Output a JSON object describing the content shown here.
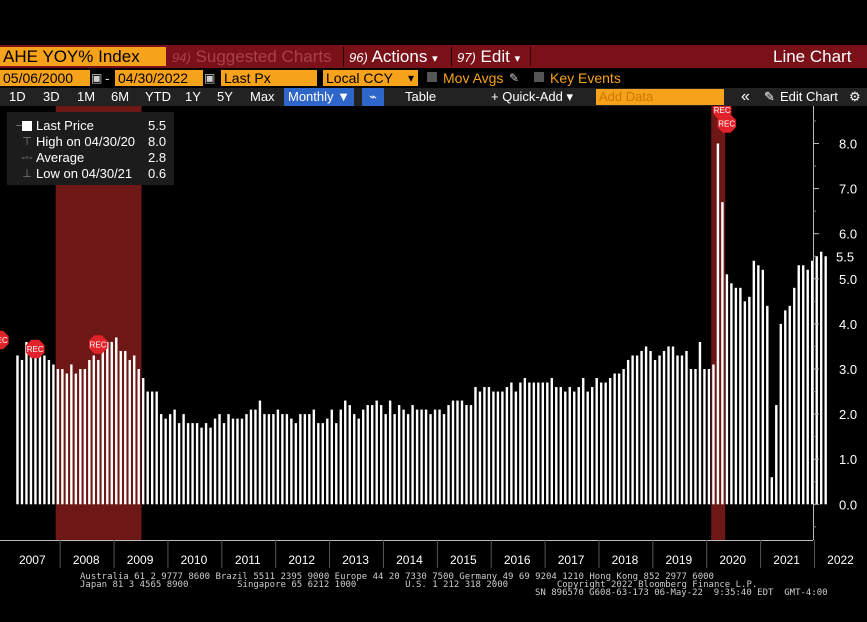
{
  "toolbar": {
    "ticker": "AHE YOY% Index",
    "suggested_num": "94)",
    "suggested": "Suggested Charts",
    "actions_num": "96)",
    "actions": "Actions",
    "edit_num": "97)",
    "edit": "Edit",
    "chart_type": "Line Chart",
    "arrow": "▾"
  },
  "settings": {
    "start_date": "05/06/2000",
    "dash": "-",
    "end_date": "04/30/2022",
    "field": "Last Px",
    "currency": "Local CCY",
    "mov_avgs": "Mov Avgs",
    "key_events": "Key Events"
  },
  "periods": {
    "items": [
      "1D",
      "3D",
      "1M",
      "6M",
      "YTD",
      "1Y",
      "5Y",
      "Max"
    ],
    "frequency": "Monthly ▼",
    "table": "Table",
    "quick_add": "+ Quick-Add ▾",
    "add_data_placeholder": "Add Data",
    "collapse": "«",
    "edit_chart": "Edit Chart",
    "gear": "⚙"
  },
  "legend": {
    "last_label": "Last Price",
    "last_value": "5.5",
    "high_label": "High on 04/30/20",
    "high_value": "8.0",
    "avg_label": "Average",
    "avg_value": "2.8",
    "low_label": "Low on 04/30/21",
    "low_value": "0.6"
  },
  "footer": {
    "line1": "Australia 61 2 9777 8600 Brazil 5511 2395 9000 Europe 44 20 7330 7500 Germany 49 69 9204 1210 Hong Kong 852 2977 6000",
    "line2": "Japan 81 3 4565 8900         Singapore 65 6212 1000         U.S. 1 212 318 2000         Copyright 2022 Bloomberg Finance L.P.",
    "line3": "SN 896570 G608-63-173 06-May-22  9:35:40 EDT  GMT-4:00"
  },
  "colors": {
    "accent": "#f7a21b",
    "header_bar": "#7a1018",
    "recession": "#7a1a1a",
    "event_marker": "#e0222a",
    "bars": "#ffffff"
  },
  "chart_data": {
    "type": "bar",
    "title": "AHE YOY% Index",
    "ylim": [
      -0.8,
      8.6
    ],
    "yticks": [
      "0.0",
      "1.0",
      "2.0",
      "3.0",
      "4.0",
      "5.0",
      "6.0",
      "7.0",
      "8.0"
    ],
    "x_labels": [
      "2007",
      "2008",
      "2009",
      "2010",
      "2011",
      "2012",
      "2013",
      "2014",
      "2015",
      "2016",
      "2017",
      "2018",
      "2019",
      "2020",
      "2021",
      "2022"
    ],
    "last_value_label": "5.5",
    "grid": false,
    "recession_periods": [
      {
        "start": "2007-12",
        "end": "2009-06"
      },
      {
        "start": "2020-02",
        "end": "2020-04"
      }
    ],
    "event_marker_text": "REC",
    "series": [
      {
        "name": "Last Price",
        "start": "2007-03",
        "frequency": "monthly",
        "values": [
          3.3,
          3.2,
          3.6,
          3.4,
          3.5,
          3.6,
          3.3,
          3.2,
          3.1,
          3.0,
          3.0,
          2.9,
          3.1,
          2.9,
          3.0,
          3.0,
          3.2,
          3.3,
          3.2,
          3.4,
          3.6,
          3.6,
          3.7,
          3.4,
          3.4,
          3.2,
          3.3,
          3.0,
          2.8,
          2.5,
          2.5,
          2.5,
          2.0,
          1.9,
          2.0,
          2.1,
          1.8,
          2.0,
          1.8,
          1.8,
          1.8,
          1.7,
          1.8,
          1.7,
          1.9,
          2.0,
          1.8,
          2.0,
          1.9,
          1.9,
          1.9,
          2.0,
          2.1,
          2.1,
          2.3,
          2.0,
          2.0,
          2.0,
          2.1,
          2.0,
          2.0,
          1.9,
          1.8,
          2.0,
          2.0,
          2.0,
          2.1,
          1.8,
          1.8,
          1.9,
          2.1,
          1.8,
          2.1,
          2.3,
          2.2,
          2.0,
          1.9,
          2.1,
          2.2,
          2.2,
          2.3,
          2.2,
          2.0,
          2.3,
          2.0,
          2.2,
          2.1,
          2.0,
          2.2,
          2.1,
          2.1,
          2.1,
          2.0,
          2.1,
          2.1,
          2.0,
          2.2,
          2.3,
          2.3,
          2.3,
          2.2,
          2.2,
          2.6,
          2.5,
          2.6,
          2.6,
          2.5,
          2.5,
          2.5,
          2.6,
          2.7,
          2.5,
          2.7,
          2.8,
          2.7,
          2.7,
          2.7,
          2.7,
          2.7,
          2.8,
          2.6,
          2.6,
          2.5,
          2.6,
          2.5,
          2.6,
          2.8,
          2.5,
          2.6,
          2.8,
          2.7,
          2.7,
          2.8,
          2.9,
          2.9,
          3.0,
          3.2,
          3.3,
          3.3,
          3.4,
          3.5,
          3.4,
          3.2,
          3.3,
          3.4,
          3.5,
          3.5,
          3.3,
          3.3,
          3.4,
          3.0,
          3.0,
          3.6,
          3.0,
          3.0,
          3.1,
          8.0,
          6.7,
          5.1,
          4.9,
          4.8,
          4.8,
          4.5,
          4.6,
          5.4,
          5.3,
          5.2,
          4.4,
          0.6,
          2.2,
          4.0,
          4.3,
          4.4,
          4.8,
          5.3,
          5.3,
          5.2,
          5.4,
          5.5,
          5.6,
          5.5
        ]
      }
    ]
  }
}
